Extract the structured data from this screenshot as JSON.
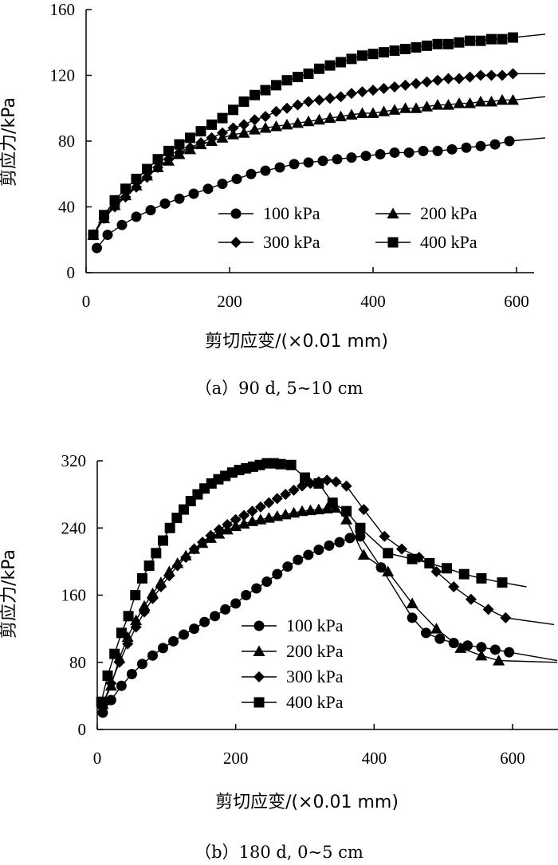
{
  "chart_data": [
    {
      "type": "line",
      "panel": "a",
      "caption": "（a）90 d, 5~10 cm",
      "xlabel": "剪切应变/(×0.01 mm)",
      "ylabel": "剪应力/kPa",
      "xlim": [
        0,
        600
      ],
      "ylim": [
        0,
        160
      ],
      "xticks": [
        "0",
        "200",
        "400",
        "600"
      ],
      "yticks": [
        "0",
        "40",
        "80",
        "120",
        "160"
      ],
      "legend_columns": 2,
      "series": [
        {
          "name": "100 kPa",
          "marker": "circle",
          "x": [
            15,
            30,
            50,
            70,
            90,
            110,
            130,
            150,
            170,
            190,
            210,
            230,
            250,
            270,
            290,
            310,
            330,
            350,
            370,
            390,
            410,
            430,
            450,
            470,
            490,
            510,
            530,
            550,
            570,
            590
          ],
          "y": [
            15,
            23,
            29,
            34,
            38,
            42,
            45,
            48,
            51,
            54,
            57,
            60,
            62,
            64,
            66,
            67,
            68,
            69,
            70,
            71,
            72,
            73,
            73,
            74,
            74,
            75,
            76,
            77,
            78,
            80
          ],
          "line_end": [
            640,
            82
          ]
        },
        {
          "name": "300 kPa",
          "marker": "diamond",
          "x": [
            10,
            25,
            40,
            55,
            70,
            85,
            100,
            115,
            130,
            145,
            160,
            175,
            190,
            205,
            220,
            235,
            250,
            265,
            280,
            295,
            310,
            325,
            340,
            355,
            370,
            385,
            400,
            415,
            430,
            445,
            460,
            475,
            490,
            505,
            520,
            535,
            550,
            565,
            580,
            595
          ],
          "y": [
            23,
            33,
            40,
            46,
            52,
            58,
            64,
            69,
            73,
            76,
            79,
            82,
            85,
            88,
            90,
            93,
            95,
            98,
            100,
            102,
            104,
            105,
            106,
            107,
            109,
            110,
            111,
            112,
            113,
            114,
            115,
            116,
            117,
            118,
            118,
            119,
            120,
            120,
            120,
            121
          ],
          "line_end": [
            640,
            121
          ]
        },
        {
          "name": "200 kPa",
          "marker": "triangle",
          "x": [
            10,
            25,
            40,
            55,
            70,
            85,
            100,
            115,
            130,
            145,
            160,
            175,
            190,
            205,
            220,
            235,
            250,
            265,
            280,
            295,
            310,
            325,
            340,
            355,
            370,
            385,
            400,
            415,
            430,
            445,
            460,
            475,
            490,
            505,
            520,
            535,
            550,
            565,
            580,
            595
          ],
          "y": [
            23,
            33,
            41,
            47,
            53,
            59,
            64,
            68,
            72,
            75,
            78,
            80,
            82,
            84,
            85,
            87,
            88,
            89,
            90,
            91,
            92,
            93,
            94,
            95,
            96,
            97,
            97,
            98,
            99,
            100,
            100,
            101,
            102,
            102,
            103,
            103,
            104,
            104,
            105,
            105
          ],
          "line_end": [
            640,
            107
          ]
        },
        {
          "name": "400 kPa",
          "marker": "square",
          "x": [
            10,
            25,
            40,
            55,
            70,
            85,
            100,
            115,
            130,
            145,
            160,
            175,
            190,
            205,
            220,
            235,
            250,
            265,
            280,
            295,
            310,
            325,
            340,
            355,
            370,
            385,
            400,
            415,
            430,
            445,
            460,
            475,
            490,
            505,
            520,
            535,
            550,
            565,
            580,
            595
          ],
          "y": [
            23,
            35,
            44,
            51,
            57,
            63,
            69,
            74,
            78,
            82,
            86,
            90,
            94,
            99,
            104,
            108,
            111,
            114,
            117,
            119,
            121,
            124,
            126,
            128,
            130,
            132,
            133,
            134,
            135,
            136,
            137,
            138,
            139,
            139,
            140,
            141,
            141,
            142,
            142,
            143
          ],
          "line_end": [
            640,
            145
          ]
        }
      ]
    },
    {
      "type": "line",
      "panel": "b",
      "caption": "（b）180 d, 0~5 cm",
      "xlabel": "剪切应变/(×0.01 mm)",
      "ylabel": "剪应力/kPa",
      "xlim": [
        0,
        600
      ],
      "ylim": [
        0,
        320
      ],
      "xticks": [
        "0",
        "200",
        "400",
        "600"
      ],
      "yticks": [
        "0",
        "80",
        "160",
        "240",
        "320"
      ],
      "legend_columns": 1,
      "series": [
        {
          "name": "100 kPa",
          "marker": "circle",
          "x": [
            8,
            20,
            35,
            50,
            65,
            80,
            95,
            110,
            125,
            140,
            155,
            170,
            185,
            200,
            215,
            230,
            245,
            260,
            275,
            290,
            305,
            320,
            335,
            350,
            365,
            380,
            410,
            455,
            475,
            495,
            515,
            535,
            555,
            575,
            595
          ],
          "y": [
            20,
            35,
            52,
            66,
            78,
            88,
            97,
            105,
            113,
            120,
            128,
            135,
            143,
            150,
            160,
            168,
            176,
            185,
            194,
            202,
            208,
            214,
            219,
            223,
            228,
            230,
            193,
            133,
            115,
            108,
            103,
            100,
            98,
            95,
            92
          ],
          "line_end": [
            700,
            82
          ]
        },
        {
          "name": "200 kPa",
          "marker": "triangle",
          "x": [
            8,
            20,
            32,
            44,
            56,
            68,
            80,
            92,
            104,
            116,
            128,
            140,
            152,
            164,
            176,
            188,
            200,
            212,
            224,
            236,
            248,
            260,
            272,
            284,
            296,
            308,
            320,
            332,
            344,
            360,
            385,
            420,
            455,
            490,
            525,
            555,
            580
          ],
          "y": [
            30,
            52,
            85,
            110,
            130,
            147,
            162,
            175,
            188,
            198,
            207,
            215,
            222,
            228,
            233,
            238,
            242,
            245,
            248,
            250,
            252,
            254,
            256,
            258,
            260,
            261,
            262,
            263,
            264,
            250,
            208,
            188,
            150,
            120,
            97,
            88,
            82
          ],
          "line_end": [
            690,
            80
          ]
        },
        {
          "name": "300 kPa",
          "marker": "diamond",
          "x": [
            8,
            20,
            32,
            44,
            56,
            68,
            80,
            92,
            104,
            116,
            128,
            140,
            152,
            164,
            176,
            188,
            200,
            212,
            224,
            236,
            248,
            260,
            272,
            284,
            296,
            308,
            320,
            332,
            345,
            360,
            385,
            415,
            440,
            465,
            490,
            515,
            540,
            565,
            590
          ],
          "y": [
            30,
            55,
            80,
            102,
            122,
            140,
            156,
            170,
            183,
            195,
            205,
            215,
            223,
            231,
            238,
            244,
            250,
            255,
            260,
            265,
            270,
            275,
            280,
            285,
            290,
            293,
            295,
            297,
            295,
            290,
            262,
            230,
            215,
            205,
            188,
            170,
            155,
            143,
            133
          ],
          "line_end": [
            660,
            125
          ]
        },
        {
          "name": "400 kPa",
          "marker": "square",
          "x": [
            6,
            15,
            25,
            35,
            45,
            55,
            65,
            75,
            85,
            95,
            105,
            115,
            125,
            135,
            145,
            155,
            165,
            175,
            185,
            195,
            205,
            215,
            225,
            235,
            245,
            255,
            265,
            280,
            300,
            320,
            340,
            360,
            380,
            420,
            455,
            480,
            505,
            530,
            555,
            585
          ],
          "y": [
            33,
            64,
            90,
            115,
            135,
            160,
            180,
            195,
            210,
            225,
            240,
            252,
            262,
            272,
            280,
            287,
            293,
            298,
            302,
            306,
            309,
            311,
            313,
            315,
            317,
            317,
            316,
            315,
            300,
            293,
            270,
            260,
            240,
            210,
            203,
            198,
            192,
            185,
            180,
            175
          ],
          "line_end": [
            620,
            170
          ]
        }
      ]
    }
  ]
}
